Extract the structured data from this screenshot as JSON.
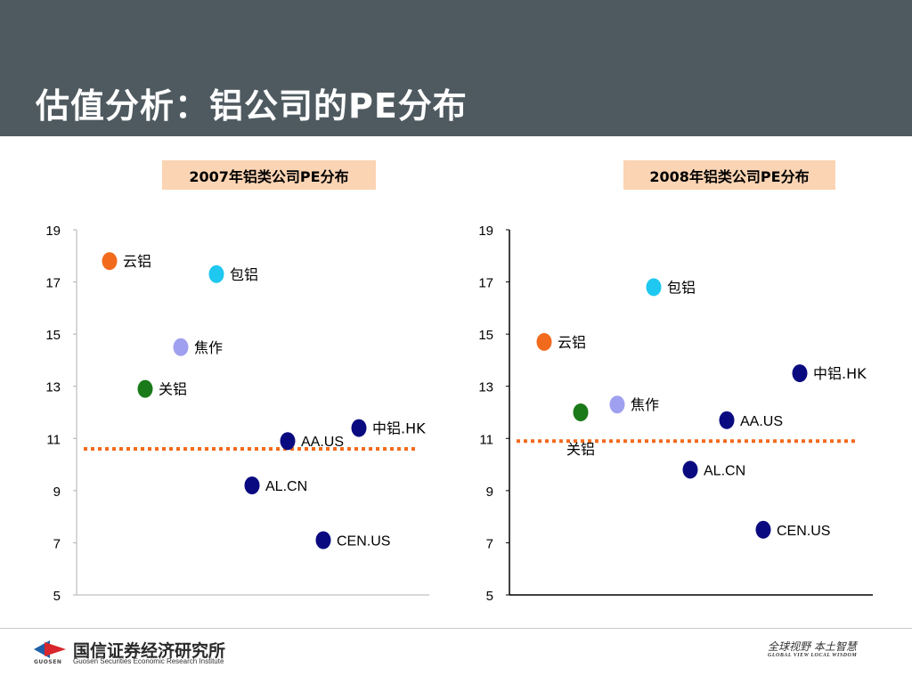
{
  "header": {
    "title": "估值分析：铝公司的PE分布"
  },
  "chart_data": [
    {
      "type": "scatter",
      "title": "2007年铝类公司PE分布",
      "ylim": [
        5,
        19
      ],
      "yticks": [
        5,
        7,
        9,
        11,
        13,
        15,
        17,
        19
      ],
      "grid": false,
      "reference_line": 10.6,
      "points": [
        {
          "label": "云铝",
          "x": 1,
          "y": 17.8,
          "color": "#f26b1d"
        },
        {
          "label": "包铝",
          "x": 4,
          "y": 17.3,
          "color": "#1ec8f0"
        },
        {
          "label": "焦作",
          "x": 3,
          "y": 14.5,
          "color": "#a0a0f0"
        },
        {
          "label": "关铝",
          "x": 2,
          "y": 12.9,
          "color": "#1a7a1a"
        },
        {
          "label": "中铝.HK",
          "x": 8,
          "y": 11.4,
          "color": "#0a0a80"
        },
        {
          "label": "AA.US",
          "x": 6,
          "y": 10.9,
          "color": "#0a0a80"
        },
        {
          "label": "AL.CN",
          "x": 5,
          "y": 9.2,
          "color": "#0a0a80"
        },
        {
          "label": "CEN.US",
          "x": 7,
          "y": 7.1,
          "color": "#0a0a80"
        }
      ]
    },
    {
      "type": "scatter",
      "title": "2008年铝类公司PE分布",
      "ylim": [
        5,
        19
      ],
      "yticks": [
        5,
        7,
        9,
        11,
        13,
        15,
        17,
        19
      ],
      "grid": false,
      "reference_line": 10.9,
      "points": [
        {
          "label": "包铝",
          "x": 4,
          "y": 16.8,
          "color": "#1ec8f0"
        },
        {
          "label": "云铝",
          "x": 1,
          "y": 14.7,
          "color": "#f26b1d"
        },
        {
          "label": "中铝.HK",
          "x": 8,
          "y": 13.5,
          "color": "#0a0a80"
        },
        {
          "label": "焦作",
          "x": 3,
          "y": 12.3,
          "color": "#a0a0f0"
        },
        {
          "label": "关铝",
          "x": 2,
          "y": 12.0,
          "color": "#1a7a1a"
        },
        {
          "label": "AA.US",
          "x": 6,
          "y": 11.7,
          "color": "#0a0a80"
        },
        {
          "label": "AL.CN",
          "x": 5,
          "y": 9.8,
          "color": "#0a0a80"
        },
        {
          "label": "CEN.US",
          "x": 7,
          "y": 7.5,
          "color": "#0a0a80"
        }
      ]
    }
  ],
  "footer": {
    "logo_text": "GUOSEN",
    "org_name_cn": "国信证券经济研究所",
    "org_name_en": "Guosen Securities Economic Research Institute",
    "slogan_cn": "全球视野  本土智慧",
    "slogan_en": "GLOBAL VIEW    LOCAL WISDOM"
  }
}
